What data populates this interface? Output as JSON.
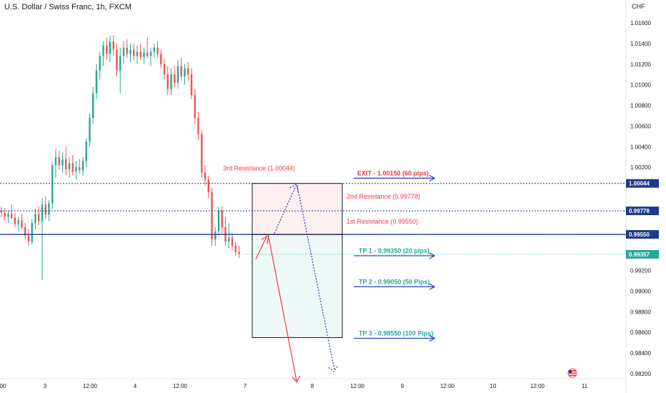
{
  "header": {
    "title": "U.S. Dollar / Swiss Franc, 1h, FXCM",
    "currency": "CHF"
  },
  "colors": {
    "up": "#26a69a",
    "down": "#ef5350",
    "resistance_line": "#1e3a8a",
    "tp_text": "#26a69a",
    "exit_text": "#f23645",
    "resistance_text": "#f23645",
    "arrow_blue": "#1e40af",
    "arrow_red": "#f23645",
    "price_tag": "#1e3a8a",
    "current_tag": "#26a69a"
  },
  "chart_data": {
    "type": "candlestick",
    "title": "U.S. Dollar / Swiss Franc, 1h, FXCM",
    "ylabel": "CHF",
    "ylim": [
      0.981,
      1.0175
    ],
    "y_ticks": [
      "1.01600",
      "1.01400",
      "1.01200",
      "1.01000",
      "1.00800",
      "1.00600",
      "1.00400",
      "1.00200",
      "1.00044",
      "0.99778",
      "0.99550",
      "0.99357",
      "0.99200",
      "0.99000",
      "0.98800",
      "0.98600",
      "0.98400",
      "0.98200"
    ],
    "x_ticks": [
      "00",
      "3",
      "12:00",
      "4",
      "12:00",
      "7",
      "8",
      "12:00",
      "9",
      "12:00",
      "10",
      "12:00",
      "11"
    ],
    "candles": [
      [
        0.9978,
        0.9982,
        0.9972,
        0.9976
      ],
      [
        0.9976,
        0.998,
        0.9968,
        0.9972
      ],
      [
        0.9972,
        0.9978,
        0.9966,
        0.9975
      ],
      [
        0.9975,
        0.9984,
        0.997,
        0.9971
      ],
      [
        0.9971,
        0.9976,
        0.9962,
        0.9965
      ],
      [
        0.9965,
        0.9972,
        0.9958,
        0.9969
      ],
      [
        0.9969,
        0.9975,
        0.996,
        0.9962
      ],
      [
        0.9962,
        0.9966,
        0.995,
        0.9954
      ],
      [
        0.9954,
        0.996,
        0.9944,
        0.9948
      ],
      [
        0.9948,
        0.997,
        0.9945,
        0.9966
      ],
      [
        0.9966,
        0.998,
        0.996,
        0.9975
      ],
      [
        0.9975,
        0.9982,
        0.9964,
        0.9968
      ],
      [
        0.9968,
        0.999,
        0.9911,
        0.9984
      ],
      [
        0.9984,
        0.9992,
        0.997,
        0.9974
      ],
      [
        0.9974,
        0.9988,
        0.9968,
        0.9985
      ],
      [
        0.9985,
        1.0025,
        0.998,
        1.0022
      ],
      [
        1.0022,
        1.0038,
        1.001,
        1.003
      ],
      [
        1.003,
        1.0036,
        1.0018,
        1.0022
      ],
      [
        1.0022,
        1.0034,
        1.0015,
        1.0028
      ],
      [
        1.0028,
        1.004,
        1.0012,
        1.0018
      ],
      [
        1.0018,
        1.003,
        1.001,
        1.0024
      ],
      [
        1.0024,
        1.0032,
        1.0012,
        1.0016
      ],
      [
        1.0016,
        1.0026,
        1.0008,
        1.002
      ],
      [
        1.002,
        1.0028,
        1.0014,
        1.0017
      ],
      [
        1.0017,
        1.003,
        1.0012,
        1.0026
      ],
      [
        1.0026,
        1.0048,
        1.002,
        1.0045
      ],
      [
        1.0045,
        1.0072,
        1.004,
        1.0068
      ],
      [
        1.0068,
        1.0098,
        1.0062,
        1.0092
      ],
      [
        1.0092,
        1.012,
        1.0086,
        1.0114
      ],
      [
        1.0114,
        1.0132,
        1.0105,
        1.0128
      ],
      [
        1.0128,
        1.0142,
        1.0118,
        1.0138
      ],
      [
        1.0138,
        1.0146,
        1.0124,
        1.013
      ],
      [
        1.013,
        1.0148,
        1.0122,
        1.0142
      ],
      [
        1.0142,
        1.0148,
        1.0128,
        1.0134
      ],
      [
        1.0134,
        1.014,
        1.0108,
        1.0114
      ],
      [
        1.0114,
        1.0136,
        1.0092,
        1.0128
      ],
      [
        1.0128,
        1.0142,
        1.012,
        1.0136
      ],
      [
        1.0136,
        1.0144,
        1.0126,
        1.013
      ],
      [
        1.013,
        1.014,
        1.0122,
        1.0134
      ],
      [
        1.0134,
        1.014,
        1.0124,
        1.0128
      ],
      [
        1.0128,
        1.0138,
        1.012,
        1.0132
      ],
      [
        1.0132,
        1.014,
        1.0124,
        1.0127
      ],
      [
        1.0127,
        1.0136,
        1.012,
        1.0131
      ],
      [
        1.0131,
        1.0146,
        1.0126,
        1.0128
      ],
      [
        1.0128,
        1.0136,
        1.0118,
        1.0132
      ],
      [
        1.0132,
        1.014,
        1.0126,
        1.0136
      ],
      [
        1.0136,
        1.0142,
        1.0126,
        1.013
      ],
      [
        1.013,
        1.0134,
        1.0116,
        1.012
      ],
      [
        1.012,
        1.0126,
        1.0106,
        1.011
      ],
      [
        1.011,
        1.0118,
        1.009,
        1.0096
      ],
      [
        1.0096,
        1.0116,
        1.009,
        1.011
      ],
      [
        1.011,
        1.0118,
        1.0098,
        1.0102
      ],
      [
        1.0102,
        1.0124,
        1.0096,
        1.0118
      ],
      [
        1.0118,
        1.0126,
        1.0104,
        1.0108
      ],
      [
        1.0108,
        1.012,
        1.01,
        1.0116
      ],
      [
        1.0116,
        1.0122,
        1.0104,
        1.011
      ],
      [
        1.011,
        1.0116,
        1.0086,
        1.009
      ],
      [
        1.009,
        1.0096,
        1.0062,
        1.0068
      ],
      [
        1.0068,
        1.0074,
        1.0046,
        1.0052
      ],
      [
        1.0052,
        1.0056,
        1.001,
        1.0015
      ],
      [
        1.0015,
        1.0022,
        1.0002,
        1.0008
      ],
      [
        1.0008,
        1.0012,
        0.999,
        0.9996
      ],
      [
        0.9996,
        1.0,
        0.9944,
        0.995
      ],
      [
        0.995,
        0.9962,
        0.9944,
        0.9958
      ],
      [
        0.9958,
        0.9982,
        0.9954,
        0.9978
      ],
      [
        0.9978,
        0.9982,
        0.9956,
        0.9962
      ],
      [
        0.9962,
        0.9972,
        0.9944,
        0.9948
      ],
      [
        0.9948,
        0.9966,
        0.9942,
        0.9952
      ],
      [
        0.9952,
        0.9956,
        0.994,
        0.9944
      ],
      [
        0.9944,
        0.9948,
        0.9934,
        0.9938
      ],
      [
        0.9938,
        0.9944,
        0.9932,
        0.9936
      ]
    ],
    "levels": [
      {
        "name": "3rd Resistance",
        "value": 1.00044,
        "label": "3rd Resistance (1.00044)",
        "tag": "1.00044"
      },
      {
        "name": "2nd Resistance",
        "value": 0.99778,
        "label": "2nd Resistance (0.99778)",
        "tag": "0.99778"
      },
      {
        "name": "1st Resistance",
        "value": 0.9955,
        "label": "1st Resistance (0.99550)",
        "tag": "0.99550"
      }
    ],
    "current_price": {
      "value": 0.99357,
      "tag": "0.99357"
    },
    "targets": [
      {
        "label": "EXIT - 1.00150 (60 pips)",
        "value": 1.0015,
        "kind": "exit"
      },
      {
        "label": "TP 1 - 0.99350 (20 pips)",
        "value": 0.9935,
        "kind": "tp"
      },
      {
        "label": "TP 2 - 0.99050 (50 Pips)",
        "value": 0.9905,
        "kind": "tp"
      },
      {
        "label": "TP 3 - 0.98550 (100 Pips)",
        "value": 0.9855,
        "kind": "tp"
      }
    ],
    "position": {
      "entry": 0.9955,
      "stop": 1.00044,
      "target": 0.9855
    }
  }
}
